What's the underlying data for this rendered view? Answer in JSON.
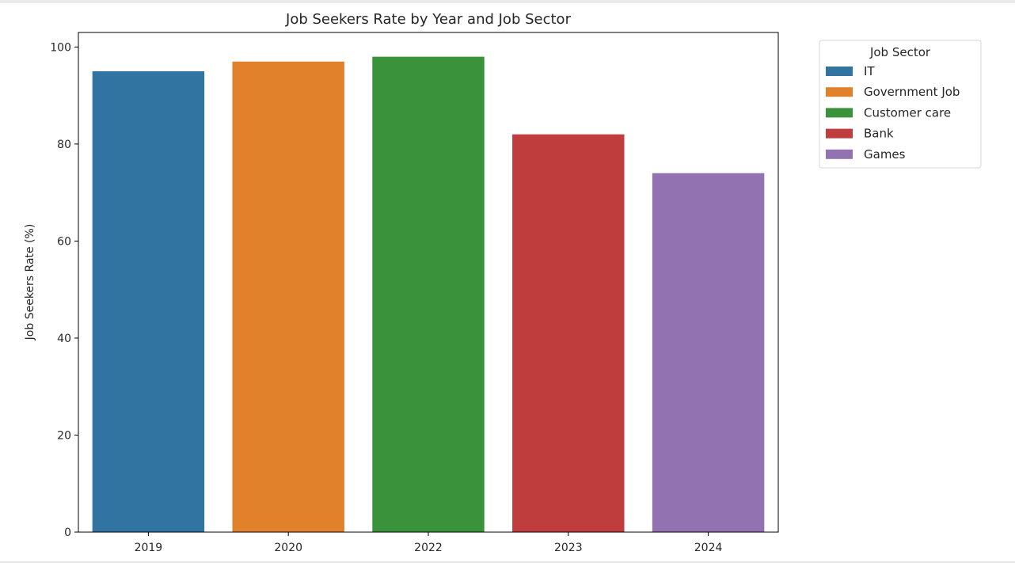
{
  "chart_data": {
    "type": "bar",
    "title": "Job Seekers Rate by Year and Job Sector",
    "xlabel": "",
    "ylabel": "Job Seekers Rate (%)",
    "categories": [
      "2019",
      "2020",
      "2022",
      "2023",
      "2024"
    ],
    "values": [
      95,
      97,
      98,
      82,
      74
    ],
    "hue": [
      "IT",
      "Government Job",
      "Customer care",
      "Bank",
      "Games"
    ],
    "colors": [
      "#3274a1",
      "#e1812c",
      "#3a923a",
      "#c03d3e",
      "#9372b2"
    ],
    "ylim": [
      0,
      103
    ],
    "yticks": [
      0,
      20,
      40,
      60,
      80,
      100
    ],
    "grid": false,
    "legend": {
      "title": "Job Sector",
      "placement": "outside-top-right",
      "entries": [
        "IT",
        "Government Job",
        "Customer care",
        "Bank",
        "Games"
      ]
    }
  }
}
